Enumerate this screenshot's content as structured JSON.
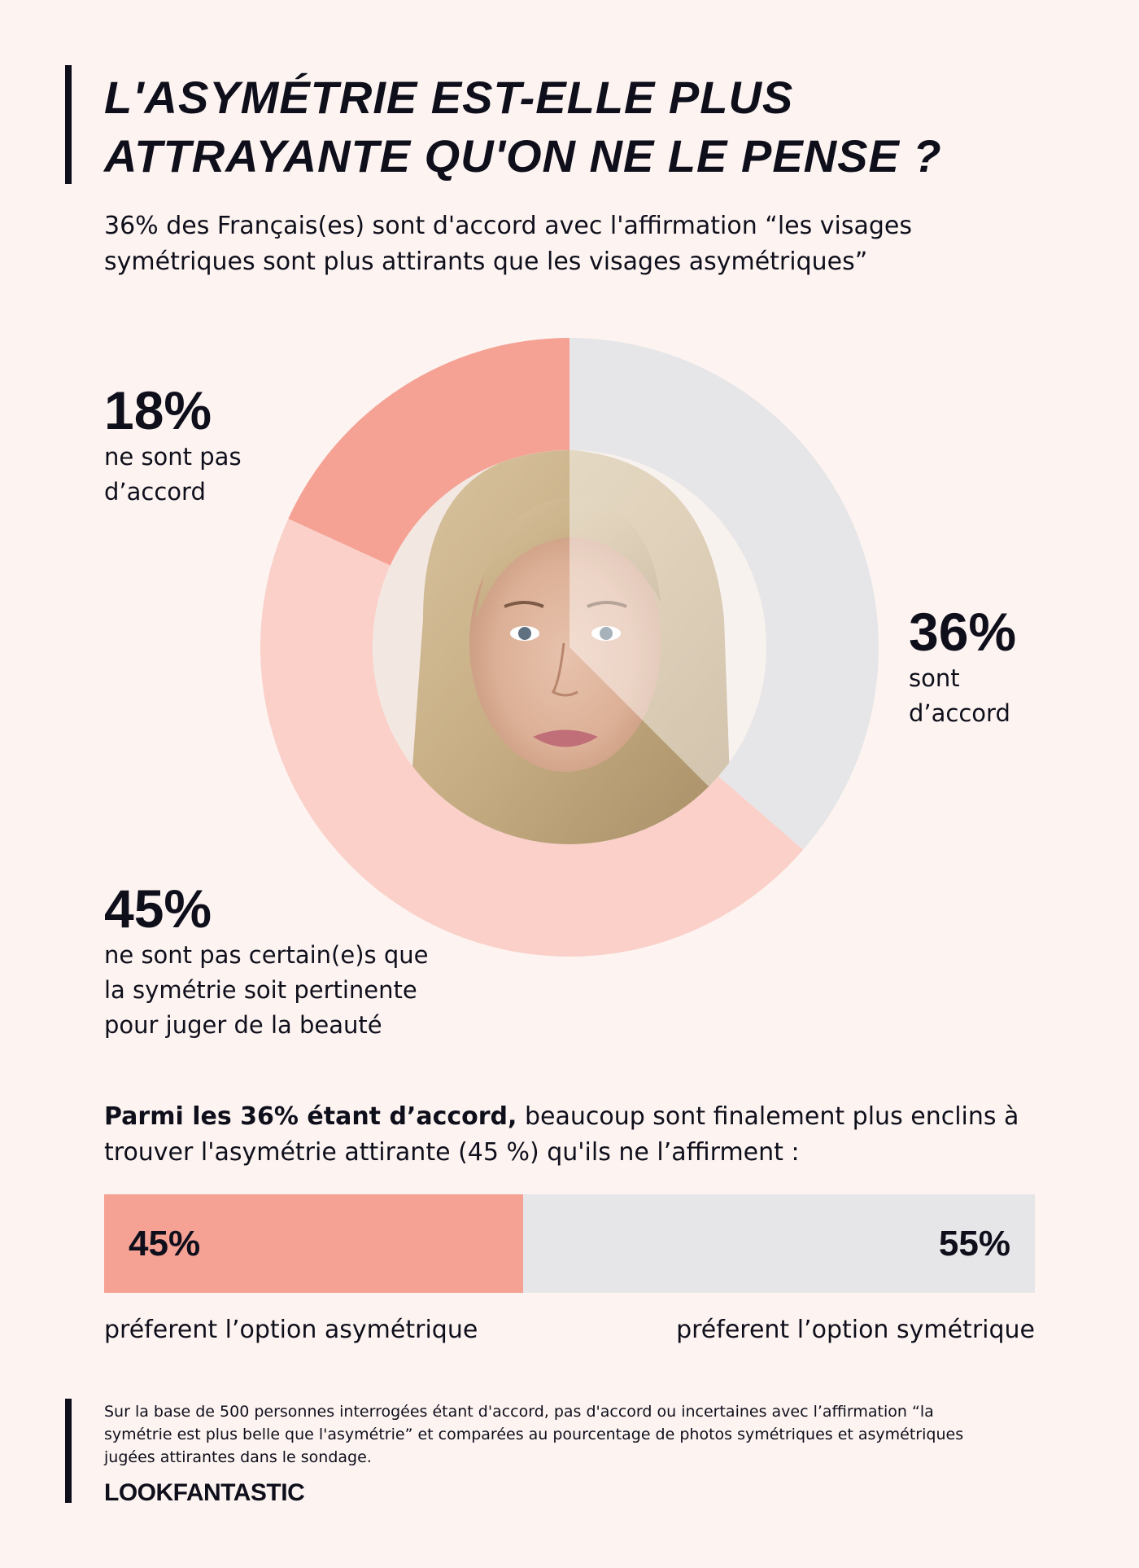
{
  "header": {
    "title_lines": [
      "L'ASYMÉTRIE EST-ELLE PLUS",
      "ATTRAYANTE QU'ON NE LE PENSE ?"
    ],
    "subtitle_lines": [
      "36% des Français(es) sont d'accord avec l'affirmation “les visages",
      "symétriques sont plus attirants que les visages asymétriques”"
    ]
  },
  "chart_data": [
    {
      "type": "pie",
      "slices": [
        {
          "pct_label": "36%",
          "value": 36,
          "label_lines": [
            "sont",
            "d’accord"
          ],
          "color": "#e6e6e8"
        },
        {
          "pct_label": "45%",
          "value": 45,
          "label_lines": [
            "ne sont pas certain(e)s que",
            "la symétrie soit pertinente",
            "pour juger de la beauté"
          ],
          "color": "#fad0c9"
        },
        {
          "pct_label": "18%",
          "value": 18,
          "label_lines": [
            "ne sont pas",
            "d’accord"
          ],
          "color": "#f5a194"
        }
      ]
    },
    {
      "type": "bar",
      "values": [
        45,
        55
      ],
      "value_labels": [
        "45%",
        "55%"
      ],
      "categories": [
        "préferent l’option asymétrique",
        "préferent l’option symétrique"
      ],
      "colors": [
        "#f5a194",
        "#e6e6e8"
      ]
    }
  ],
  "bar_intro": {
    "bold": "Parmi les 36% étant d’accord,",
    "rest_line1": " beaucoup sont finalement plus enclins à",
    "line2": "trouver l'asymétrie attirante (45 %) qu'ils ne l’affirment :"
  },
  "footnote_lines": [
    "Sur la base de 500 personnes interrogées étant d'accord, pas d'accord ou incertaines avec l’affirmation “la",
    "symétrie est plus belle que l'asymétrie” et comparées au pourcentage de photos symétriques et asymétriques",
    "jugées attirantes dans le sondage."
  ],
  "brand": "LOOKFANTASTIC",
  "colors": {
    "background": "#fdf4f1",
    "text": "#0f0f1c",
    "coral": "#f5a194",
    "light_pink": "#fad0c9",
    "grey": "#e6e6e8"
  }
}
